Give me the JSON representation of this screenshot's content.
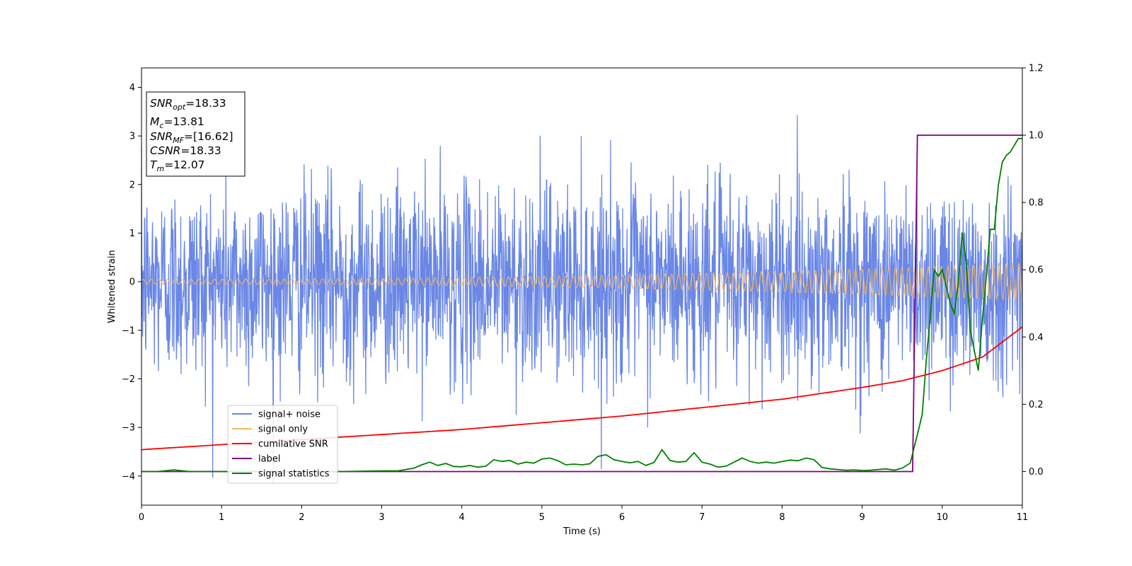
{
  "chart_data": {
    "type": "line",
    "xlabel": "Time (s)",
    "ylabel": "Whitened strain",
    "xlim": [
      0,
      11
    ],
    "ylim_left": [
      -4.6,
      4.4
    ],
    "ylim_right": [
      -0.1,
      1.2
    ],
    "x_ticks": [
      0,
      1,
      2,
      3,
      4,
      5,
      6,
      7,
      8,
      9,
      10,
      11
    ],
    "y_ticks_left": [
      -4,
      -3,
      -2,
      -1,
      0,
      1,
      2,
      3,
      4
    ],
    "y_ticks_right": [
      0.0,
      0.2,
      0.4,
      0.6,
      0.8,
      1.0,
      1.2
    ],
    "grid": false,
    "legend_placement": "lower-left",
    "info_box": {
      "snr_opt": {
        "base": "SNR",
        "sub": "opt",
        "value": "=18.33"
      },
      "mc": {
        "base": "M",
        "sub": "c",
        "value": "=13.81"
      },
      "snr_mf": {
        "base": "SNR",
        "sub": "MF",
        "value": "=[16.62]"
      },
      "csnr": {
        "base": "CSNR",
        "sub": "",
        "value": "=18.33"
      },
      "tm": {
        "base": "T",
        "sub": "m",
        "value": "=12.07"
      }
    },
    "series": [
      {
        "name": "signal+ noise",
        "color": "#6a87e6",
        "axis": "left",
        "kind": "noise",
        "typical_amplitude": [
          -2.2,
          2.2
        ],
        "extreme_range": [
          -4.15,
          3.85
        ]
      },
      {
        "name": "signal only",
        "color": "#f5b75a",
        "axis": "left",
        "kind": "chirp",
        "amplitude_start": 0.05,
        "amplitude_end": 0.38
      },
      {
        "name": "cumilative SNR",
        "color": "#ff0000",
        "axis": "right",
        "x": [
          0,
          1,
          2,
          3,
          4,
          5,
          6,
          7,
          8,
          9,
          9.5,
          10,
          10.5,
          11
        ],
        "y": [
          0.065,
          0.08,
          0.095,
          0.11,
          0.125,
          0.145,
          0.165,
          0.19,
          0.215,
          0.25,
          0.27,
          0.3,
          0.34,
          0.43
        ]
      },
      {
        "name": "label",
        "color": "#800080",
        "axis": "right",
        "x": [
          0,
          9.63,
          9.69,
          11
        ],
        "y": [
          0,
          0,
          1,
          1
        ]
      },
      {
        "name": "signal statistics",
        "color": "#008000",
        "axis": "right",
        "x": [
          0,
          0.2,
          0.4,
          0.6,
          0.8,
          1.0,
          1.5,
          2.0,
          2.5,
          3.0,
          3.2,
          3.4,
          3.5,
          3.6,
          3.7,
          3.8,
          3.9,
          4.0,
          4.1,
          4.2,
          4.3,
          4.4,
          4.5,
          4.6,
          4.7,
          4.8,
          4.9,
          5.0,
          5.1,
          5.2,
          5.3,
          5.4,
          5.5,
          5.6,
          5.7,
          5.8,
          5.9,
          6.0,
          6.1,
          6.2,
          6.3,
          6.4,
          6.5,
          6.6,
          6.7,
          6.8,
          6.9,
          7.0,
          7.1,
          7.2,
          7.3,
          7.4,
          7.5,
          7.6,
          7.7,
          7.8,
          7.9,
          8.0,
          8.1,
          8.2,
          8.3,
          8.4,
          8.5,
          8.6,
          8.7,
          8.8,
          8.9,
          9.0,
          9.1,
          9.2,
          9.3,
          9.4,
          9.5,
          9.6,
          9.7,
          9.75,
          9.8,
          9.85,
          9.9,
          9.95,
          10.0,
          10.05,
          10.1,
          10.15,
          10.2,
          10.25,
          10.3,
          10.35,
          10.4,
          10.45,
          10.5,
          10.55,
          10.6,
          10.65,
          10.7,
          10.75,
          10.8,
          10.85,
          10.9,
          10.95,
          11.0
        ],
        "y": [
          0.0,
          0.0,
          0.005,
          0.0,
          0.0,
          0.0,
          0.0,
          0.0,
          0.0,
          0.002,
          0.002,
          0.01,
          0.02,
          0.028,
          0.018,
          0.024,
          0.015,
          0.014,
          0.018,
          0.013,
          0.016,
          0.035,
          0.03,
          0.033,
          0.022,
          0.028,
          0.025,
          0.037,
          0.04,
          0.032,
          0.02,
          0.022,
          0.02,
          0.023,
          0.045,
          0.05,
          0.035,
          0.03,
          0.026,
          0.03,
          0.018,
          0.027,
          0.065,
          0.033,
          0.028,
          0.03,
          0.056,
          0.028,
          0.022,
          0.013,
          0.016,
          0.028,
          0.04,
          0.03,
          0.025,
          0.028,
          0.025,
          0.03,
          0.034,
          0.032,
          0.04,
          0.035,
          0.012,
          0.008,
          0.006,
          0.004,
          0.005,
          0.003,
          0.004,
          0.006,
          0.008,
          0.004,
          0.01,
          0.025,
          0.12,
          0.17,
          0.33,
          0.46,
          0.6,
          0.58,
          0.6,
          0.55,
          0.5,
          0.47,
          0.56,
          0.71,
          0.62,
          0.42,
          0.36,
          0.3,
          0.45,
          0.58,
          0.72,
          0.72,
          0.85,
          0.92,
          0.94,
          0.95,
          0.97,
          0.99,
          0.99
        ]
      }
    ]
  }
}
